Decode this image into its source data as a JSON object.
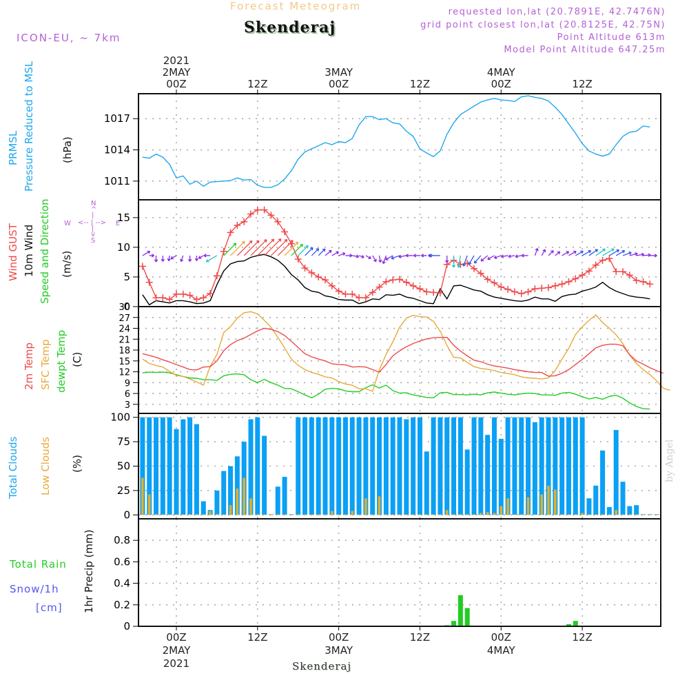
{
  "header": {
    "title": "Forecast Meteogram",
    "station": "Skenderaj",
    "model": "ICON-EU, ~ 7km",
    "requested": "requested lon,lat (20.7891E, 42.7476N)",
    "gridpoint": "grid point closest lon,lat (20.8125E, 42.75N)",
    "point_altitude": "Point Altitude 613m",
    "model_altitude": "Model Point Altitude 647.25m",
    "credit": "by Angel",
    "footer_station": "Skenderaj"
  },
  "colors": {
    "pressure": "#1ea7ee",
    "gust": "#f04848",
    "wind10m": "#000000",
    "temp2m": "#ee4a4a",
    "sfc_temp": "#e8a93a",
    "dewpoint": "#22cc22",
    "total_clouds": "#0aa0f5",
    "low_clouds": "#e0b030",
    "rain": "#22cc22",
    "snow": "#5555ee",
    "purple": "#b35fd6"
  },
  "panel_labels": {
    "pressure": [
      "PRMSL",
      "Pressure Reduced to MSL",
      "(hPa)"
    ],
    "wind": [
      "Wind GUST",
      "10m Wind",
      "Speed and Direction",
      "(m/s)"
    ],
    "compass": {
      "n": "N",
      "s": "S",
      "w": "W",
      "e": "E"
    },
    "temp": [
      "2m Temp",
      "SFC Temp",
      "dewpt Temp",
      "(C)"
    ],
    "clouds": [
      "Total Clouds",
      "Low Clouds",
      "(%)"
    ],
    "precip": [
      "Total  Rain",
      "Snow/1h",
      "[cm]",
      "1hr Precip (mm)"
    ]
  },
  "time_axis": {
    "top": [
      {
        "hour": 0,
        "lines": [
          "2021",
          "2MAY",
          "00Z"
        ]
      },
      {
        "hour": 12,
        "lines": [
          "12Z"
        ]
      },
      {
        "hour": 24,
        "lines": [
          "3MAY",
          "00Z"
        ]
      },
      {
        "hour": 36,
        "lines": [
          "12Z"
        ]
      },
      {
        "hour": 48,
        "lines": [
          "4MAY",
          "00Z"
        ]
      },
      {
        "hour": 60,
        "lines": [
          "12Z"
        ]
      }
    ],
    "bottom": [
      {
        "hour": 0,
        "lines": [
          "00Z",
          "2MAY",
          "2021"
        ]
      },
      {
        "hour": 12,
        "lines": [
          "12Z"
        ]
      },
      {
        "hour": 24,
        "lines": [
          "00Z",
          "3MAY"
        ]
      },
      {
        "hour": 36,
        "lines": [
          "12Z"
        ]
      },
      {
        "hour": 48,
        "lines": [
          "00Z",
          "4MAY"
        ]
      },
      {
        "hour": 60,
        "lines": [
          "12Z"
        ]
      }
    ],
    "range_hours": [
      -5.6,
      71.6
    ]
  },
  "chart_data": [
    {
      "type": "line",
      "id": "pressure",
      "title": "PRMSL Pressure Reduced to MSL",
      "ylabel": "(hPa)",
      "ylim": [
        1009.2,
        1019.4
      ],
      "yticks": [
        1011,
        1014,
        1017
      ],
      "start_hour": -5,
      "series": [
        {
          "name": "PRMSL",
          "color_key": "pressure",
          "values": [
            1013.3,
            1013.2,
            1013.6,
            1013.3,
            1012.6,
            1011.3,
            1011.5,
            1010.7,
            1011.0,
            1010.5,
            1010.9,
            1010.95,
            1011.0,
            1011.05,
            1011.3,
            1011.1,
            1011.15,
            1010.6,
            1010.4,
            1010.4,
            1010.65,
            1011.2,
            1012.0,
            1013.1,
            1013.8,
            1014.1,
            1014.4,
            1014.7,
            1014.5,
            1014.8,
            1014.7,
            1015.1,
            1016.4,
            1017.2,
            1017.2,
            1016.9,
            1017.0,
            1016.6,
            1016.5,
            1015.8,
            1015.3,
            1014.1,
            1013.7,
            1013.35,
            1013.9,
            1015.5,
            1016.6,
            1017.4,
            1017.8,
            1018.2,
            1018.6,
            1018.8,
            1018.95,
            1018.8,
            1018.75,
            1018.65,
            1019.1,
            1019.2,
            1019.05,
            1018.95,
            1018.7,
            1018.1,
            1017.4,
            1016.5,
            1015.6,
            1014.6,
            1013.9,
            1013.6,
            1013.4,
            1013.6,
            1014.5,
            1015.3,
            1015.7,
            1015.8,
            1016.3,
            1016.2
          ]
        }
      ]
    },
    {
      "type": "line",
      "id": "wind",
      "title": "Wind GUST / 10m Wind Speed and Direction",
      "ylabel": "(m/s)",
      "ylim": [
        0,
        18
      ],
      "yticks": [
        0,
        5,
        10,
        15
      ],
      "start_hour": -5,
      "series": [
        {
          "name": "Wind GUST",
          "color_key": "gust",
          "marker": "+",
          "values": [
            6.8,
            4.1,
            1.5,
            1.5,
            1.2,
            2.1,
            2.1,
            1.9,
            1.2,
            1.5,
            2.2,
            5.2,
            9.3,
            12.5,
            13.7,
            14.3,
            15.6,
            16.3,
            16.3,
            15.4,
            14.3,
            12.6,
            10.6,
            8.0,
            6.5,
            5.7,
            5.0,
            4.5,
            3.5,
            2.6,
            2.1,
            2.1,
            1.5,
            1.5,
            2.4,
            3.3,
            4.2,
            4.5,
            4.6,
            4.1,
            3.5,
            3.0,
            2.5,
            2.4,
            2.3,
            7.1,
            7.8,
            7.1,
            7.3,
            6.4,
            5.6,
            4.6,
            4.0,
            3.3,
            2.9,
            2.5,
            2.2,
            2.5,
            3.0,
            3.1,
            3.2,
            3.5,
            3.8,
            4.2,
            4.7,
            5.3,
            6.0,
            7.0,
            7.8,
            8.1,
            5.9,
            5.9,
            5.3,
            4.4,
            4.2,
            3.8
          ]
        },
        {
          "name": "10m Wind",
          "color_key": "wind10m",
          "values": [
            2.0,
            0.3,
            1.0,
            0.8,
            0.6,
            1.0,
            1.0,
            0.8,
            0.5,
            0.6,
            1.0,
            3.7,
            6.0,
            7.2,
            7.6,
            7.7,
            8.3,
            8.6,
            8.8,
            8.4,
            7.8,
            6.8,
            5.4,
            4.5,
            3.2,
            2.6,
            2.4,
            1.8,
            1.6,
            1.2,
            1.1,
            1.1,
            0.5,
            0.8,
            1.3,
            1.2,
            2.0,
            1.9,
            2.1,
            1.6,
            1.4,
            1.0,
            0.6,
            0.5,
            3.0,
            1.3,
            3.5,
            3.6,
            3.2,
            2.8,
            2.6,
            2.0,
            1.6,
            1.4,
            1.2,
            1.0,
            0.9,
            1.1,
            1.6,
            1.3,
            1.3,
            0.9,
            1.7,
            2.0,
            2.1,
            2.6,
            2.9,
            3.3,
            4.1,
            3.2,
            2.6,
            2.2,
            1.8,
            1.6,
            1.5,
            1.3
          ]
        },
        {
          "name": "Wind direction arrows (deg toward, clockwise from N)",
          "values": [
            60,
            90,
            180,
            180,
            190,
            240,
            200,
            180,
            180,
            240,
            270,
            240,
            45,
            45,
            45,
            45,
            45,
            45,
            45,
            45,
            45,
            45,
            45,
            45,
            45,
            45,
            45,
            50,
            60,
            70,
            90,
            100,
            110,
            120,
            150,
            170,
            200,
            240,
            250,
            260,
            270,
            270,
            270,
            270,
            270,
            180,
            180,
            190,
            200,
            210,
            220,
            230,
            240,
            250,
            260,
            260,
            260,
            270,
            20,
            30,
            45,
            50,
            60,
            60,
            60,
            60,
            55,
            55,
            60,
            60,
            60,
            70,
            75,
            80,
            85,
            90
          ]
        }
      ]
    },
    {
      "type": "line",
      "id": "temperature",
      "title": "2m Temp / SFC Temp / dewpt Temp",
      "ylabel": "(C)",
      "ylim": [
        0.5,
        30
      ],
      "yticks": [
        3,
        6,
        9,
        12,
        15,
        18,
        21,
        24,
        27,
        30
      ],
      "start_hour": -5,
      "series": [
        {
          "name": "2m Temp",
          "color_key": "temp2m",
          "values": [
            17.0,
            16.5,
            16.0,
            15.3,
            14.7,
            14.0,
            13.3,
            12.6,
            12.5,
            13.3,
            13.4,
            15.0,
            17.8,
            19.5,
            20.6,
            21.3,
            22.3,
            23.3,
            24.0,
            23.7,
            23.1,
            22.0,
            20.4,
            18.7,
            17.0,
            16.1,
            15.5,
            15.0,
            14.2,
            14.0,
            13.9,
            13.3,
            13.4,
            13.3,
            12.6,
            11.9,
            14.0,
            16.4,
            17.8,
            18.9,
            19.8,
            20.5,
            21.1,
            21.4,
            21.5,
            21.5,
            19.3,
            17.7,
            16.4,
            15.2,
            14.8,
            14.1,
            13.6,
            13.3,
            13.0,
            12.6,
            12.3,
            12.0,
            11.8,
            11.8,
            10.8,
            10.9,
            11.6,
            12.6,
            14.0,
            15.4,
            17.0,
            18.6,
            19.3,
            19.6,
            19.6,
            19.2,
            16.7,
            15.0,
            14.1,
            13.1,
            12.3,
            11.6
          ]
        },
        {
          "name": "SFC Temp",
          "color_key": "sfc_temp",
          "values": [
            15.5,
            14.3,
            13.7,
            13.3,
            12.1,
            11.0,
            10.7,
            10.0,
            9.2,
            8.3,
            13.5,
            16.8,
            22.8,
            24.5,
            26.8,
            28.3,
            28.6,
            28.0,
            26.2,
            24.3,
            21.5,
            18.6,
            15.5,
            13.8,
            12.6,
            11.8,
            11.3,
            10.6,
            10.3,
            9.3,
            8.6,
            8.3,
            7.3,
            7.3,
            6.6,
            12.5,
            16.8,
            20.3,
            24.3,
            26.8,
            27.6,
            27.2,
            27.1,
            25.9,
            23.2,
            19.3,
            16.0,
            15.8,
            14.6,
            13.4,
            12.9,
            12.7,
            12.3,
            11.8,
            11.5,
            11.2,
            10.6,
            10.3,
            10.2,
            10.0,
            10.3,
            12.3,
            15.5,
            18.5,
            22.3,
            24.4,
            26.2,
            27.7,
            25.6,
            24.0,
            22.2,
            19.8,
            16.6,
            14.3,
            12.6,
            11.2,
            9.5,
            7.4,
            6.9
          ]
        },
        {
          "name": "dewpt Temp",
          "color_key": "dewpoint",
          "values": [
            11.7,
            11.9,
            11.8,
            11.9,
            11.7,
            11.2,
            10.7,
            10.3,
            10.2,
            9.8,
            9.8,
            9.6,
            10.9,
            11.3,
            11.4,
            11.2,
            9.8,
            9.0,
            9.9,
            9.0,
            8.3,
            7.4,
            7.3,
            6.5,
            5.6,
            4.8,
            5.8,
            7.2,
            7.4,
            7.3,
            6.7,
            6.5,
            6.5,
            7.6,
            8.4,
            7.5,
            8.3,
            6.8,
            6.1,
            6.2,
            5.6,
            5.3,
            4.9,
            4.8,
            6.2,
            6.3,
            5.7,
            5.7,
            5.6,
            5.8,
            5.6,
            6.2,
            6.4,
            6.1,
            5.8,
            5.6,
            5.9,
            6.1,
            6.0,
            5.6,
            5.6,
            5.5,
            6.1,
            6.3,
            5.8,
            5.1,
            4.5,
            4.9,
            4.4,
            5.2,
            5.5,
            4.7,
            3.4,
            2.4,
            1.8,
            1.7
          ]
        }
      ]
    },
    {
      "type": "bar",
      "id": "clouds",
      "title": "Total Clouds / Low Clouds",
      "ylabel": "(%)",
      "ylim": [
        -4,
        104
      ],
      "yticks": [
        0,
        25,
        50,
        75,
        100
      ],
      "start_hour": -5,
      "series": [
        {
          "name": "Total Clouds",
          "color_key": "total_clouds",
          "values": [
            100,
            100,
            100,
            100,
            100,
            88,
            98,
            100,
            93,
            14,
            5,
            25,
            45,
            50,
            60,
            75,
            98,
            100,
            81,
            0,
            29,
            39,
            0,
            100,
            100,
            100,
            100,
            100,
            100,
            100,
            100,
            100,
            100,
            100,
            100,
            100,
            100,
            100,
            100,
            98,
            100,
            100,
            65,
            100,
            100,
            100,
            100,
            100,
            67,
            100,
            100,
            82,
            100,
            78,
            100,
            100,
            100,
            100,
            95,
            100,
            100,
            100,
            100,
            100,
            100,
            100,
            17,
            30,
            66,
            8,
            87,
            34,
            9,
            10,
            0,
            0,
            0,
            0,
            0,
            0,
            3,
            1
          ]
        },
        {
          "name": "Low Clouds",
          "color_key": "low_clouds",
          "values": [
            38,
            21,
            1,
            0,
            0,
            0,
            0,
            1,
            0,
            0,
            4,
            1,
            0,
            10,
            27,
            38,
            17,
            0,
            0,
            0,
            0,
            0,
            0,
            0,
            0,
            0,
            0,
            0,
            4,
            0,
            0,
            4,
            0,
            17,
            0,
            19,
            0,
            0,
            0,
            0,
            0,
            0,
            0,
            0,
            0,
            5,
            0,
            0,
            0,
            0,
            2,
            3,
            2,
            9,
            17,
            0,
            0,
            18,
            0,
            21,
            30,
            26,
            0,
            0,
            0,
            2,
            0,
            0,
            0,
            0,
            5,
            0,
            0,
            0,
            0,
            0,
            0,
            0,
            0,
            0,
            1,
            0
          ]
        }
      ]
    },
    {
      "type": "bar",
      "id": "precip",
      "title": "1hr Precip",
      "ylabel": "1hr Precip (mm)",
      "ylim": [
        0,
        1.0
      ],
      "yticks": [
        0,
        0.2,
        0.4,
        0.6,
        0.8
      ],
      "series": [
        {
          "name": "Total Rain",
          "color_key": "rain",
          "hours": [
            39,
            40,
            41,
            42,
            43,
            58,
            59
          ],
          "values": [
            0.003,
            0.01,
            0.05,
            0.29,
            0.17,
            0.02,
            0.05
          ]
        },
        {
          "name": "Snow/1h",
          "color_key": "snow",
          "hours": [],
          "values": []
        }
      ]
    }
  ]
}
